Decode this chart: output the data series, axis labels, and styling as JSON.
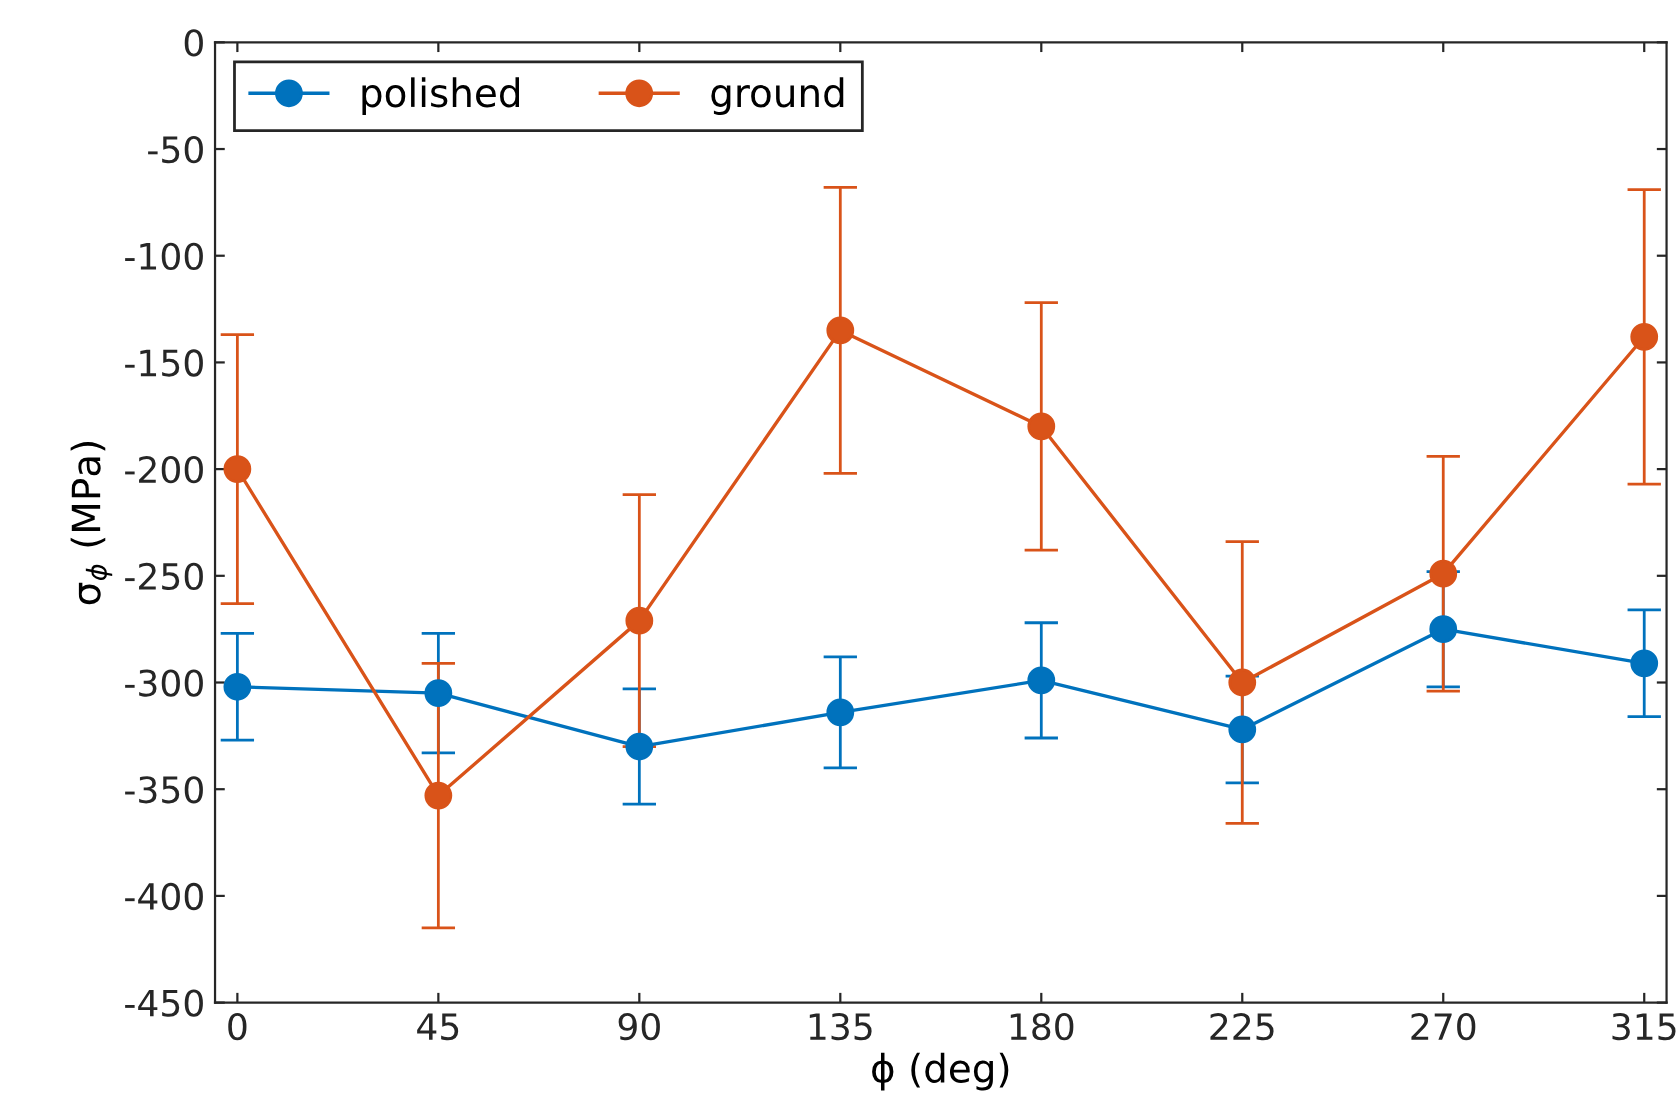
{
  "chart_data": {
    "type": "line",
    "xlabel": "ϕ (deg)",
    "ylabel": "σ$_{ϕ}$ (MPa)",
    "x": [
      0,
      45,
      90,
      135,
      180,
      225,
      270,
      315
    ],
    "series": [
      {
        "name": "polished",
        "color": "#0072bd",
        "values": [
          -302,
          -305,
          -330,
          -314,
          -299,
          -322,
          -275,
          -291
        ],
        "errors": [
          25,
          28,
          27,
          26,
          27,
          25,
          27,
          25
        ]
      },
      {
        "name": "ground",
        "color": "#d95319",
        "values": [
          -200,
          -353,
          -271,
          -135,
          -180,
          -300,
          -249,
          -138
        ],
        "errors": [
          63,
          62,
          59,
          67,
          58,
          66,
          55,
          69
        ]
      }
    ],
    "xlim": [
      -5,
      320
    ],
    "xticks": [
      0,
      45,
      90,
      135,
      180,
      225,
      270,
      315
    ],
    "ylim": [
      -450,
      0
    ],
    "yticks": [
      -450,
      -400,
      -350,
      -300,
      -250,
      -200,
      -150,
      -100,
      -50,
      0
    ],
    "grid": false,
    "legend": "top left",
    "marker": "circle",
    "line_style": "solid"
  }
}
